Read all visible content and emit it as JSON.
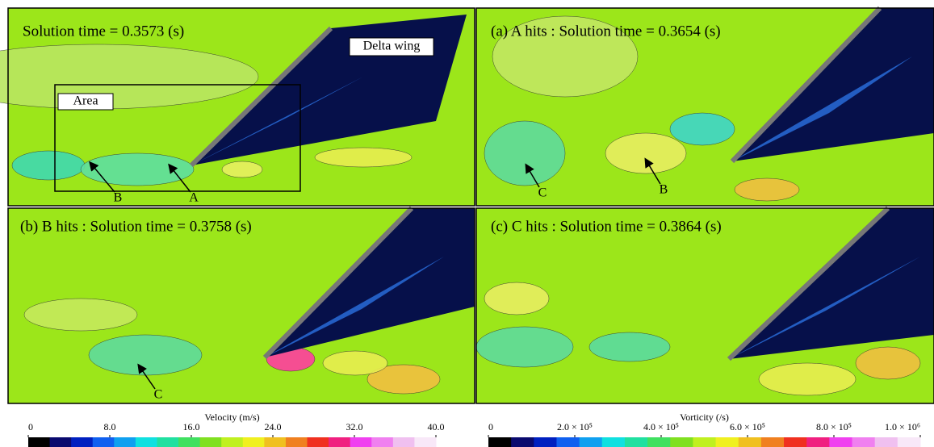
{
  "panels": [
    {
      "title": "Solution time = 0.3573 (s)",
      "labels": [
        "Delta wing",
        "Area",
        "A",
        "B"
      ]
    },
    {
      "title": "(a) A hits : Solution time = 0.3654 (s)",
      "labels": [
        "B",
        "C"
      ]
    },
    {
      "title": "(b) B hits : Solution time = 0.3758 (s)",
      "labels": [
        "C"
      ]
    },
    {
      "title": "(c) C hits : Solution time = 0.3864 (s)"
    }
  ],
  "colorbars": [
    {
      "title": "Velocity (m/s)",
      "xlim": [
        0,
        40
      ],
      "xticks": [
        0,
        {
          "value": 8,
          "label": "8.0"
        },
        {
          "value": 16,
          "label": "16.0"
        },
        {
          "value": 24,
          "label": "24.0"
        },
        {
          "value": 32,
          "label": "32.0"
        },
        {
          "value": 40,
          "label": "40.0"
        }
      ]
    },
    {
      "title": "Vorticity (/s)",
      "xlim": [
        0,
        1000000
      ],
      "xticks": [
        0,
        {
          "value": 200000,
          "label": "2.0 × 10⁵"
        },
        {
          "value": 400000,
          "label": "4.0 × 10⁵"
        },
        {
          "value": 600000,
          "label": "6.0 × 10⁵"
        },
        {
          "value": 800000,
          "label": "8.0 × 10⁵"
        },
        {
          "value": 1000000,
          "label": "1.0 × 10⁶"
        }
      ]
    }
  ]
}
